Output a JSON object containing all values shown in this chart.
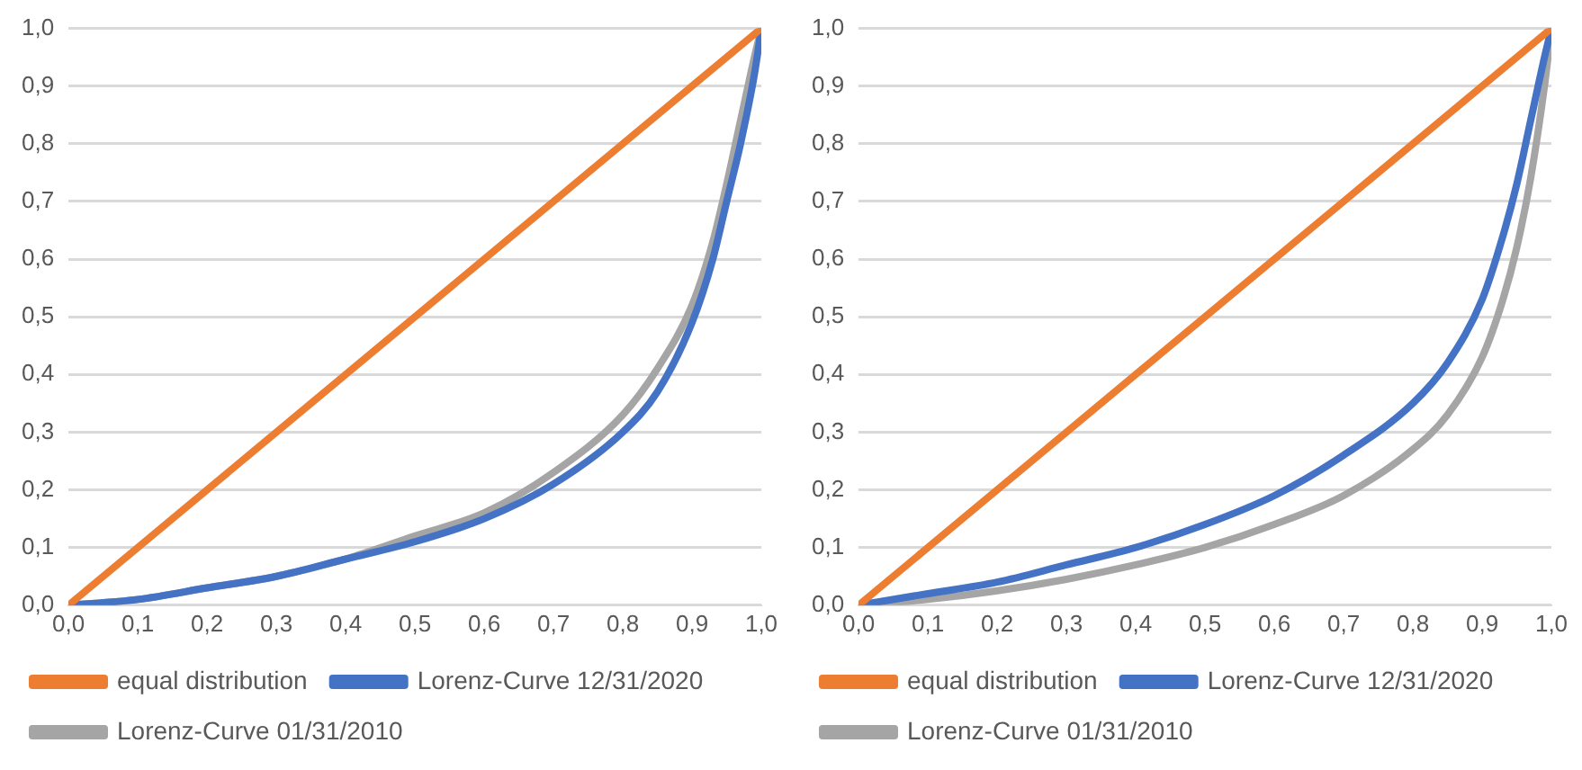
{
  "chart_data": [
    {
      "type": "line",
      "xlim": [
        0,
        1
      ],
      "ylim": [
        0,
        1
      ],
      "xticks": [
        {
          "value": 0,
          "label": "0,0"
        },
        {
          "value": 0.1,
          "label": "0,1"
        },
        {
          "value": 0.2,
          "label": "0,2"
        },
        {
          "value": 0.3,
          "label": "0,3"
        },
        {
          "value": 0.4,
          "label": "0,4"
        },
        {
          "value": 0.5,
          "label": "0,5"
        },
        {
          "value": 0.6,
          "label": "0,6"
        },
        {
          "value": 0.7,
          "label": "0,7"
        },
        {
          "value": 0.8,
          "label": "0,8"
        },
        {
          "value": 0.9,
          "label": "0,9"
        },
        {
          "value": 1,
          "label": "1,0"
        }
      ],
      "yticks": [
        {
          "value": 0,
          "label": "0,0"
        },
        {
          "value": 0.1,
          "label": "0,1"
        },
        {
          "value": 0.2,
          "label": "0,2"
        },
        {
          "value": 0.3,
          "label": "0,3"
        },
        {
          "value": 0.4,
          "label": "0,4"
        },
        {
          "value": 0.5,
          "label": "0,5"
        },
        {
          "value": 0.6,
          "label": "0,6"
        },
        {
          "value": 0.7,
          "label": "0,7"
        },
        {
          "value": 0.8,
          "label": "0,8"
        },
        {
          "value": 0.9,
          "label": "0,9"
        },
        {
          "value": 1,
          "label": "1,0"
        }
      ],
      "grid": "y",
      "legend": "bottom",
      "marker": "none",
      "line_style": "solid",
      "series": [
        {
          "name": "equal distribution",
          "color": "#ed7d31",
          "x": [
            0,
            1
          ],
          "values": [
            0,
            1
          ]
        },
        {
          "name": "Lorenz-Curve 12/31/2020",
          "color": "#4472c4",
          "x": [
            0,
            0.1,
            0.2,
            0.3,
            0.4,
            0.5,
            0.6,
            0.7,
            0.8,
            0.85,
            0.9,
            0.93,
            0.95,
            0.97,
            0.99,
            1
          ],
          "values": [
            0,
            0.01,
            0.03,
            0.05,
            0.08,
            0.11,
            0.15,
            0.21,
            0.3,
            0.37,
            0.49,
            0.6,
            0.7,
            0.8,
            0.92,
            1
          ]
        },
        {
          "name": "Lorenz-Curve 01/31/2010",
          "color": "#a5a5a5",
          "x": [
            0,
            0.1,
            0.2,
            0.3,
            0.4,
            0.5,
            0.6,
            0.7,
            0.8,
            0.85,
            0.9,
            0.93,
            0.95,
            0.97,
            0.99,
            1
          ],
          "values": [
            0,
            0.01,
            0.03,
            0.05,
            0.08,
            0.12,
            0.16,
            0.23,
            0.33,
            0.41,
            0.52,
            0.63,
            0.73,
            0.84,
            0.95,
            1
          ]
        }
      ]
    },
    {
      "type": "line",
      "xlim": [
        0,
        1
      ],
      "ylim": [
        0,
        1
      ],
      "xticks": [
        {
          "value": 0,
          "label": "0,0"
        },
        {
          "value": 0.1,
          "label": "0,1"
        },
        {
          "value": 0.2,
          "label": "0,2"
        },
        {
          "value": 0.3,
          "label": "0,3"
        },
        {
          "value": 0.4,
          "label": "0,4"
        },
        {
          "value": 0.5,
          "label": "0,5"
        },
        {
          "value": 0.6,
          "label": "0,6"
        },
        {
          "value": 0.7,
          "label": "0,7"
        },
        {
          "value": 0.8,
          "label": "0,8"
        },
        {
          "value": 0.9,
          "label": "0,9"
        },
        {
          "value": 1,
          "label": "1,0"
        }
      ],
      "yticks": [
        {
          "value": 0,
          "label": "0,0"
        },
        {
          "value": 0.1,
          "label": "0,1"
        },
        {
          "value": 0.2,
          "label": "0,2"
        },
        {
          "value": 0.3,
          "label": "0,3"
        },
        {
          "value": 0.4,
          "label": "0,4"
        },
        {
          "value": 0.5,
          "label": "0,5"
        },
        {
          "value": 0.6,
          "label": "0,6"
        },
        {
          "value": 0.7,
          "label": "0,7"
        },
        {
          "value": 0.8,
          "label": "0,8"
        },
        {
          "value": 0.9,
          "label": "0,9"
        },
        {
          "value": 1,
          "label": "1,0"
        }
      ],
      "grid": "y",
      "legend": "bottom",
      "marker": "none",
      "line_style": "solid",
      "series": [
        {
          "name": "equal distribution",
          "color": "#ed7d31",
          "x": [
            0,
            1
          ],
          "values": [
            0,
            1
          ]
        },
        {
          "name": "Lorenz-Curve 12/31/2020",
          "color": "#4472c4",
          "x": [
            0,
            0.1,
            0.2,
            0.3,
            0.4,
            0.5,
            0.6,
            0.7,
            0.8,
            0.85,
            0.9,
            0.93,
            0.95,
            0.97,
            0.99,
            1
          ],
          "values": [
            0,
            0.02,
            0.04,
            0.07,
            0.1,
            0.14,
            0.19,
            0.26,
            0.35,
            0.42,
            0.53,
            0.64,
            0.73,
            0.84,
            0.95,
            1
          ]
        },
        {
          "name": "Lorenz-Curve 01/31/2010",
          "color": "#a5a5a5",
          "x": [
            0,
            0.1,
            0.2,
            0.3,
            0.4,
            0.5,
            0.6,
            0.7,
            0.8,
            0.85,
            0.9,
            0.93,
            0.95,
            0.97,
            0.99,
            1
          ],
          "values": [
            0,
            0.01,
            0.025,
            0.045,
            0.07,
            0.1,
            0.14,
            0.19,
            0.27,
            0.33,
            0.43,
            0.53,
            0.62,
            0.74,
            0.9,
            1
          ]
        }
      ]
    }
  ]
}
